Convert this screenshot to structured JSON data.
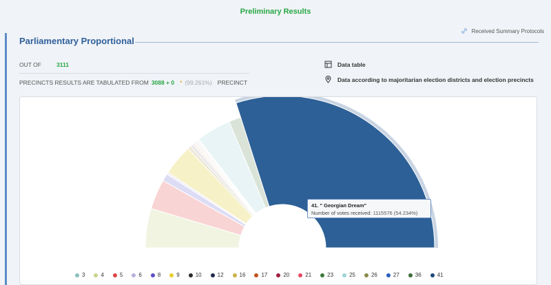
{
  "header": {
    "title": "Preliminary Results"
  },
  "protocols": {
    "label": "Received Summary Protocols",
    "icon": "link-icon"
  },
  "section": {
    "title": "Parliamentary Proportional"
  },
  "stats": {
    "out_of_label": "OUT OF",
    "out_of_value": "3111",
    "precincts_prefix": "PRECINCTS RESULTS ARE TABULATED FROM",
    "precincts_value": "3088 + 0",
    "star": "*",
    "precincts_pct": "(99.261%)",
    "precincts_suffix": "PRECINCT"
  },
  "links": {
    "data_table": "Data table",
    "districts": "Data according to majoritarian election districts and election precincts"
  },
  "tooltip": {
    "title": "41. \" Georgian Dream\"",
    "votes_label": "Number of votes received:",
    "votes_value": "1115576 (54.234%)"
  },
  "chart_data": {
    "type": "pie",
    "variant": "semi-donut",
    "title": "",
    "slices": [
      {
        "label": "3",
        "value": 8.4,
        "color": "#f1f4e1"
      },
      {
        "label": "4",
        "value": 6.4,
        "color": "#f9d4d4"
      },
      {
        "label": "5",
        "value": 1.6,
        "color": "#dcdcf5"
      },
      {
        "label": "6",
        "value": 0.4,
        "color": "#eeeaf7"
      },
      {
        "label": "8",
        "value": 6.6,
        "color": "#f7f1c8"
      },
      {
        "label": "9",
        "value": 0.7,
        "color": "#ece8d8"
      },
      {
        "label": "10",
        "value": 0.6,
        "color": "#e6e6e6"
      },
      {
        "label": "12",
        "value": 0.4,
        "color": "#f3e9e4"
      },
      {
        "label": "16",
        "value": 0.3,
        "color": "#f6efe9"
      },
      {
        "label": "17",
        "value": 0.3,
        "color": "#f3f0ea"
      },
      {
        "label": "20",
        "value": 0.3,
        "color": "#f4eef0"
      },
      {
        "label": "21",
        "value": 0.2,
        "color": "#f4eaec"
      },
      {
        "label": "23",
        "value": 0.2,
        "color": "#eaf2ea"
      },
      {
        "label": "25",
        "value": 7.4,
        "color": "#e8f4f6"
      },
      {
        "label": "26",
        "value": 2.6,
        "color": "#dae3d8"
      },
      {
        "label": "41",
        "value": 54.234,
        "color": "#2d6096"
      }
    ],
    "highlight": "41",
    "legend": [
      {
        "label": "3",
        "color": "#8bbfc0"
      },
      {
        "label": "4",
        "color": "#c7d48c"
      },
      {
        "label": "5",
        "color": "#e04545"
      },
      {
        "label": "6",
        "color": "#b7b0e0"
      },
      {
        "label": "8",
        "color": "#5b4fc8"
      },
      {
        "label": "9",
        "color": "#e6cf2a"
      },
      {
        "label": "10",
        "color": "#2a2a2a"
      },
      {
        "label": "12",
        "color": "#1f2a4a"
      },
      {
        "label": "16",
        "color": "#c8b34a"
      },
      {
        "label": "17",
        "color": "#c0551f"
      },
      {
        "label": "20",
        "color": "#a02040"
      },
      {
        "label": "21",
        "color": "#e84a6a"
      },
      {
        "label": "23",
        "color": "#3d7a3a"
      },
      {
        "label": "25",
        "color": "#9fd4d6"
      },
      {
        "label": "26",
        "color": "#8a8a4a"
      },
      {
        "label": "27",
        "color": "#2a5fc0"
      },
      {
        "label": "36",
        "color": "#3e6e3a"
      },
      {
        "label": "41",
        "color": "#1f4a7a"
      }
    ],
    "legend_position": "bottom"
  }
}
